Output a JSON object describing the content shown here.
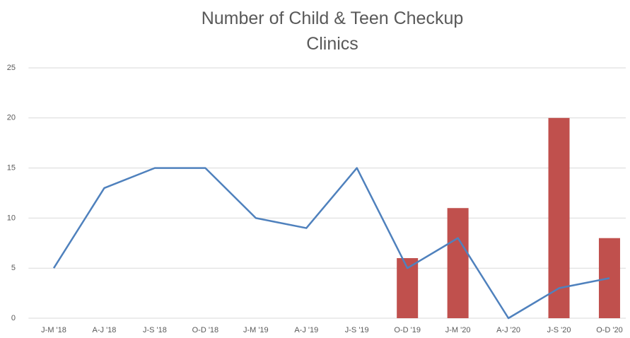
{
  "chart_data": {
    "type": "combo",
    "title": "Number of Child & Teen Checkup Clinics",
    "categories": [
      "J-M '18",
      "A-J '18",
      "J-S '18",
      "O-D '18",
      "J-M '19",
      "A-J '19",
      "J-S '19",
      "O-D '19",
      "J-M '20",
      "A-J '20",
      "J-S '20",
      "O-D '20"
    ],
    "series": [
      {
        "type": "bar",
        "color": "#c0504d",
        "values": [
          null,
          null,
          null,
          null,
          null,
          null,
          null,
          6,
          11,
          null,
          20,
          8
        ]
      },
      {
        "type": "line",
        "color": "#4f81bd",
        "values": [
          5,
          13,
          15,
          15,
          10,
          9,
          15,
          5,
          8,
          0,
          3,
          4
        ]
      }
    ],
    "ylim": [
      0,
      25
    ],
    "yticks": [
      0,
      5,
      10,
      15,
      20,
      25
    ],
    "grid": true
  }
}
